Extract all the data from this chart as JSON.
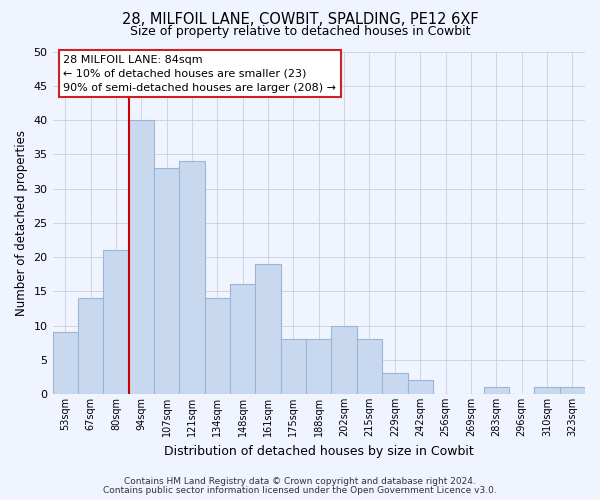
{
  "title": "28, MILFOIL LANE, COWBIT, SPALDING, PE12 6XF",
  "subtitle": "Size of property relative to detached houses in Cowbit",
  "xlabel": "Distribution of detached houses by size in Cowbit",
  "ylabel": "Number of detached properties",
  "bar_labels": [
    "53sqm",
    "67sqm",
    "80sqm",
    "94sqm",
    "107sqm",
    "121sqm",
    "134sqm",
    "148sqm",
    "161sqm",
    "175sqm",
    "188sqm",
    "202sqm",
    "215sqm",
    "229sqm",
    "242sqm",
    "256sqm",
    "269sqm",
    "283sqm",
    "296sqm",
    "310sqm",
    "323sqm"
  ],
  "bar_values": [
    9,
    14,
    21,
    40,
    33,
    34,
    14,
    16,
    19,
    8,
    8,
    10,
    8,
    3,
    2,
    0,
    0,
    1,
    0,
    1,
    1
  ],
  "bar_color": "#c8d9ef",
  "bar_edge_color": "#9ab5d8",
  "vline_color": "#cc0000",
  "ylim": [
    0,
    50
  ],
  "yticks": [
    0,
    5,
    10,
    15,
    20,
    25,
    30,
    35,
    40,
    45,
    50
  ],
  "annotation_line1": "28 MILFOIL LANE: 84sqm",
  "annotation_line2": "← 10% of detached houses are smaller (23)",
  "annotation_line3": "90% of semi-detached houses are larger (208) →",
  "footer_line1": "Contains HM Land Registry data © Crown copyright and database right 2024.",
  "footer_line2": "Contains public sector information licensed under the Open Government Licence v3.0.",
  "bg_color": "#f0f4ff",
  "grid_color": "#c8d0e0"
}
